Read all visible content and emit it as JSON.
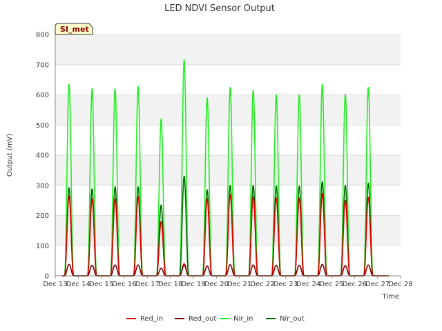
{
  "chart_data": {
    "type": "line",
    "title": "LED NDVI Sensor Output",
    "xlabel": "Time",
    "ylabel": "Output (mV)",
    "badge": "SI_met",
    "ylim": [
      0,
      800
    ],
    "yticks": [
      0,
      100,
      200,
      300,
      400,
      500,
      600,
      700,
      800
    ],
    "xlim": [
      13,
      28
    ],
    "xticks": [
      {
        "x": 13,
        "label": "Dec 13"
      },
      {
        "x": 14,
        "label": "Dec 14"
      },
      {
        "x": 15,
        "label": "Dec 15"
      },
      {
        "x": 16,
        "label": "Dec 16"
      },
      {
        "x": 17,
        "label": "Dec 17"
      },
      {
        "x": 18,
        "label": "Dec 18"
      },
      {
        "x": 19,
        "label": "Dec 19"
      },
      {
        "x": 20,
        "label": "Dec 20"
      },
      {
        "x": 21,
        "label": "Dec 21"
      },
      {
        "x": 22,
        "label": "Dec 22"
      },
      {
        "x": 23,
        "label": "Dec 23"
      },
      {
        "x": 24,
        "label": "Dec 24"
      },
      {
        "x": 25,
        "label": "Dec 25"
      },
      {
        "x": 26,
        "label": "Dec 26"
      },
      {
        "x": 27,
        "label": "Dec 27"
      },
      {
        "x": 28,
        "label": "Dec 28"
      }
    ],
    "grid": true,
    "legend_position": "bottom",
    "x_start": 13.3,
    "x_end": 27.5,
    "series": [
      {
        "name": "Red_in",
        "color": "#dd0000",
        "days": [
          13,
          14,
          15,
          16,
          17,
          18,
          19,
          20,
          21,
          22,
          23,
          24,
          25,
          26
        ],
        "peaks": [
          265,
          255,
          255,
          262,
          180,
          40,
          255,
          270,
          262,
          258,
          258,
          272,
          250,
          260
        ]
      },
      {
        "name": "Red_out",
        "color": "#7a0000",
        "days": [
          13,
          14,
          15,
          16,
          17,
          18,
          19,
          20,
          21,
          22,
          23,
          24,
          25,
          26
        ],
        "peaks": [
          38,
          35,
          36,
          36,
          25,
          35,
          32,
          37,
          36,
          35,
          35,
          38,
          34,
          36
        ]
      },
      {
        "name": "Nir_in",
        "color": "#22ee22",
        "days": [
          13,
          14,
          15,
          16,
          17,
          18,
          19,
          20,
          21,
          22,
          23,
          24,
          25,
          26
        ],
        "peaks": [
          635,
          620,
          620,
          628,
          520,
          715,
          590,
          625,
          615,
          600,
          600,
          635,
          602,
          625
        ]
      },
      {
        "name": "Nir_out",
        "color": "#006600",
        "days": [
          13,
          14,
          15,
          16,
          17,
          18,
          19,
          20,
          21,
          22,
          23,
          24,
          25,
          26
        ],
        "peaks": [
          292,
          288,
          295,
          295,
          235,
          330,
          285,
          300,
          300,
          298,
          297,
          312,
          300,
          307
        ]
      }
    ]
  }
}
